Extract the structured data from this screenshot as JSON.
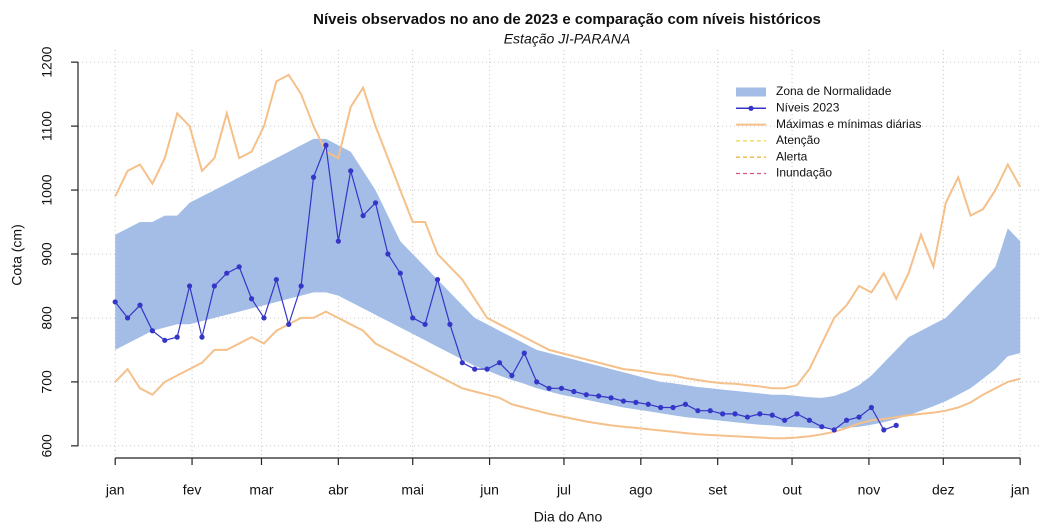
{
  "chart_data": {
    "type": "line",
    "title": "Níveis observados no ano de 2023 e comparação com níveis históricos",
    "subtitle": "Estação JI-PARANA",
    "x_label": "Dia do Ano",
    "y_label": "Cota (cm)",
    "xlim": [
      -14,
      374
    ],
    "ylim": [
      581,
      1219
    ],
    "xticks": [
      {
        "value": 1,
        "label": "jan"
      },
      {
        "value": 32,
        "label": "fev"
      },
      {
        "value": 60,
        "label": "mar"
      },
      {
        "value": 91,
        "label": "abr"
      },
      {
        "value": 121,
        "label": "mai"
      },
      {
        "value": 152,
        "label": "jun"
      },
      {
        "value": 182,
        "label": "jul"
      },
      {
        "value": 213,
        "label": "ago"
      },
      {
        "value": 244,
        "label": "set"
      },
      {
        "value": 274,
        "label": "out"
      },
      {
        "value": 305,
        "label": "nov"
      },
      {
        "value": 335,
        "label": "dez"
      },
      {
        "value": 366,
        "label": "jan"
      }
    ],
    "yticks": [
      600,
      700,
      800,
      900,
      1000,
      1100,
      1200
    ],
    "grid": true,
    "legend": "top-right",
    "x": [
      1,
      6,
      11,
      16,
      21,
      26,
      31,
      36,
      41,
      46,
      51,
      56,
      61,
      66,
      71,
      76,
      81,
      86,
      91,
      96,
      101,
      106,
      111,
      116,
      121,
      126,
      131,
      136,
      141,
      146,
      151,
      156,
      161,
      166,
      171,
      176,
      181,
      186,
      191,
      196,
      201,
      206,
      211,
      216,
      221,
      226,
      231,
      236,
      241,
      246,
      251,
      256,
      261,
      266,
      271,
      276,
      281,
      286,
      291,
      296,
      301,
      306,
      311,
      316,
      321,
      326,
      331,
      336,
      341,
      346,
      351,
      356,
      361,
      366
    ],
    "series": [
      {
        "name": "Zona de Normalidade",
        "color": "#a3bde6",
        "kind": "band",
        "upper": [
          930,
          940,
          950,
          950,
          960,
          960,
          980,
          990,
          1000,
          1010,
          1020,
          1030,
          1040,
          1050,
          1060,
          1070,
          1080,
          1080,
          1070,
          1060,
          1030,
          1000,
          960,
          920,
          900,
          880,
          860,
          840,
          820,
          800,
          790,
          780,
          770,
          760,
          750,
          745,
          740,
          735,
          730,
          725,
          720,
          715,
          710,
          705,
          700,
          698,
          695,
          692,
          690,
          688,
          686,
          684,
          682,
          680,
          680,
          678,
          676,
          675,
          678,
          685,
          695,
          710,
          730,
          750,
          770,
          780,
          790,
          800,
          820,
          840,
          860,
          880,
          940,
          920
        ],
        "lower": [
          750,
          760,
          770,
          780,
          785,
          790,
          790,
          795,
          800,
          805,
          810,
          815,
          820,
          825,
          830,
          835,
          840,
          840,
          835,
          825,
          815,
          805,
          795,
          785,
          775,
          765,
          755,
          745,
          735,
          725,
          718,
          710,
          703,
          697,
          690,
          685,
          680,
          676,
          672,
          668,
          664,
          660,
          657,
          654,
          651,
          648,
          645,
          643,
          641,
          639,
          637,
          635,
          633,
          632,
          630,
          629,
          628,
          627,
          627,
          628,
          630,
          633,
          637,
          642,
          648,
          655,
          662,
          670,
          680,
          690,
          705,
          720,
          740,
          745
        ]
      },
      {
        "name": "Níveis 2023",
        "color": "#3535c8",
        "kind": "line-points",
        "values": [
          825,
          800,
          820,
          780,
          765,
          770,
          850,
          770,
          850,
          870,
          880,
          830,
          800,
          860,
          790,
          850,
          1020,
          1070,
          920,
          1030,
          960,
          980,
          900,
          870,
          800,
          790,
          860,
          790,
          730,
          720,
          720,
          730,
          710,
          745,
          700,
          690,
          690,
          685,
          680,
          678,
          675,
          670,
          668,
          665,
          660,
          660,
          665,
          655,
          655,
          650,
          650,
          645,
          650,
          648,
          640,
          650,
          640,
          630,
          625,
          640,
          645,
          660,
          625,
          632,
          null,
          null,
          null,
          null,
          null,
          null,
          null,
          null,
          null,
          null
        ]
      },
      {
        "name": "Máximas e mínimas diárias",
        "color": "#f5c08a",
        "kind": "range-lines",
        "upper": [
          990,
          1030,
          1040,
          1010,
          1050,
          1120,
          1100,
          1030,
          1050,
          1120,
          1050,
          1060,
          1100,
          1170,
          1180,
          1150,
          1100,
          1060,
          1050,
          1130,
          1160,
          1100,
          1050,
          1000,
          950,
          950,
          900,
          880,
          860,
          830,
          800,
          790,
          780,
          770,
          760,
          750,
          745,
          740,
          735,
          730,
          725,
          720,
          718,
          715,
          712,
          710,
          706,
          703,
          700,
          698,
          697,
          695,
          693,
          690,
          690,
          695,
          720,
          760,
          800,
          820,
          850,
          840,
          870,
          830,
          870,
          930,
          880,
          980,
          1020,
          960,
          970,
          1000,
          1040,
          1005
        ],
        "lower": [
          700,
          720,
          690,
          680,
          700,
          710,
          720,
          730,
          750,
          750,
          760,
          770,
          760,
          780,
          790,
          800,
          800,
          810,
          800,
          790,
          780,
          760,
          750,
          740,
          730,
          720,
          710,
          700,
          690,
          685,
          680,
          675,
          665,
          660,
          655,
          650,
          646,
          642,
          638,
          635,
          632,
          630,
          628,
          626,
          624,
          622,
          620,
          618,
          617,
          616,
          615,
          614,
          613,
          612,
          612,
          613,
          615,
          618,
          622,
          628,
          635,
          640,
          642,
          645,
          648,
          650,
          652,
          655,
          660,
          668,
          680,
          690,
          700,
          705
        ]
      },
      {
        "name": "Atenção",
        "color": "#e8d84a",
        "kind": "dashed"
      },
      {
        "name": "Alerta",
        "color": "#f2b64a",
        "kind": "dashed"
      },
      {
        "name": "Inundação",
        "color": "#d9527a",
        "kind": "dashed"
      }
    ]
  }
}
